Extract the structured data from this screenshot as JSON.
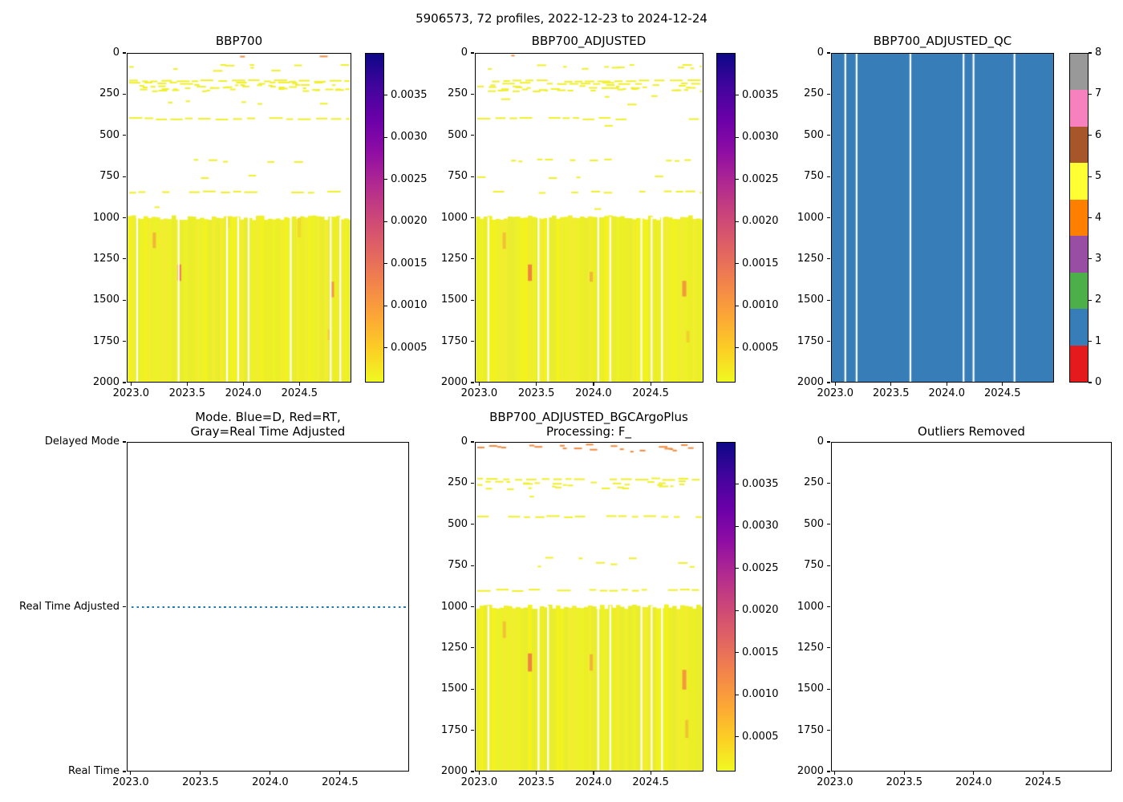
{
  "figure": {
    "suptitle": "5906573, 72 profiles, 2022-12-23 to 2024-12-24",
    "background": "#ffffff",
    "text_color": "#000000"
  },
  "axes": {
    "depth": {
      "range": [
        0,
        2000
      ],
      "values": [
        0,
        250,
        500,
        750,
        1000,
        1250,
        1500,
        1750,
        2000
      ],
      "labels": [
        "0",
        "250",
        "500",
        "750",
        "1000",
        "1250",
        "1500",
        "1750",
        "2000"
      ]
    },
    "year_heat": {
      "range": [
        2022.962,
        2024.962
      ],
      "values": [
        2023.0,
        2023.5,
        2024.0,
        2024.5
      ],
      "labels": [
        "2023.0",
        "2023.5",
        "2024.0",
        "2024.5"
      ]
    },
    "year_wide": {
      "range": [
        2022.972,
        2024.995
      ],
      "values": [
        2023.0,
        2023.5,
        2024.0,
        2024.5
      ],
      "labels": [
        "2023.0",
        "2023.5",
        "2024.0",
        "2024.5"
      ]
    },
    "mode_categories": {
      "labels": [
        "Delayed Mode",
        "Real Time Adjusted",
        "Real Time"
      ],
      "fracs": [
        0,
        0.5,
        1
      ]
    }
  },
  "colorbars": {
    "heat": {
      "vmin": 9e-05,
      "vmax": 0.004,
      "tick_values": [
        0.0035,
        0.003,
        0.0025,
        0.002,
        0.0015,
        0.001,
        0.0005
      ],
      "tick_labels": [
        "0.0035",
        "0.0030",
        "0.0025",
        "0.0020",
        "0.0015",
        "0.0010",
        "0.0005"
      ],
      "gradient_top_to_bottom": [
        "#0d0887",
        "#41049d",
        "#6a00a8",
        "#8f0da4",
        "#b12a90",
        "#cc4778",
        "#e16462",
        "#f2844b",
        "#fca636",
        "#fcce25",
        "#f0f921"
      ]
    },
    "qc": {
      "tick_labels": [
        "8",
        "7",
        "6",
        "5",
        "4",
        "3",
        "2",
        "1",
        "0"
      ],
      "cell_colors_top_to_bottom": [
        "#999999",
        "#f781bf",
        "#a65628",
        "#ffff33",
        "#ff7f00",
        "#984ea3",
        "#4daf4a",
        "#377eb8",
        "#e41a1c"
      ]
    }
  },
  "heat_palette": {
    "base_yellow": "#edf128",
    "stripe_shades": [
      "#edf128",
      "#e9ed2d",
      "#f2f21f",
      "#ecef25",
      "#f0ee2e"
    ],
    "dash_yellow": "#f0ef2b",
    "dash_orange": "#ef8b3f"
  },
  "chart_data": [
    {
      "id": "bbp700",
      "type": "heatmap",
      "title": "BBP700",
      "x_axis": "year_heat",
      "y_axis": "depth",
      "colorbar": "heat",
      "seed": 11,
      "bands": [
        {
          "kind": "dashes",
          "d0": 5,
          "d1": 25,
          "density": 0.12,
          "color": "#ef8b3f"
        },
        {
          "kind": "dashes",
          "d0": 60,
          "d1": 115,
          "density": 0.14,
          "color": "#f0ef2b"
        },
        {
          "kind": "line",
          "d0": 162,
          "d1": 170,
          "density": 0.93,
          "color": "#f0ef2b"
        },
        {
          "kind": "line",
          "d0": 176,
          "d1": 184,
          "density": 0.55,
          "color": "#f0ef2b"
        },
        {
          "kind": "dashes",
          "d0": 185,
          "d1": 235,
          "density": 0.6,
          "color": "#f0ef2b"
        },
        {
          "kind": "dashes",
          "d0": 250,
          "d1": 320,
          "density": 0.04,
          "color": "#f0ef2b"
        },
        {
          "kind": "line",
          "d0": 392,
          "d1": 400,
          "density": 0.8,
          "color": "#f0ef2b"
        },
        {
          "kind": "dashes",
          "d0": 430,
          "d1": 455,
          "density": 0.06,
          "color": "#f0ef2b"
        },
        {
          "kind": "dashes",
          "d0": 640,
          "d1": 665,
          "density": 0.35,
          "color": "#f0ef2b"
        },
        {
          "kind": "dashes",
          "d0": 735,
          "d1": 765,
          "density": 0.04,
          "color": "#f0ef2b"
        },
        {
          "kind": "line",
          "d0": 840,
          "d1": 848,
          "density": 0.7,
          "color": "#f0ef2b"
        },
        {
          "kind": "dashes",
          "d0": 930,
          "d1": 955,
          "density": 0.04,
          "color": "#f0ef2b"
        },
        {
          "kind": "solid",
          "d0": 1000,
          "d1": 2000,
          "color": "#edf128"
        }
      ],
      "gaps": [
        0.043,
        0.229,
        0.446,
        0.496,
        0.543,
        0.732,
        0.911,
        0.954
      ],
      "marks": [
        {
          "x": 0.12,
          "d0": 1090,
          "d1": 1185,
          "w": 4,
          "color": "#f2b43a"
        },
        {
          "x": 0.232,
          "d0": 1285,
          "d1": 1385,
          "w": 5,
          "color": "#ef8440"
        },
        {
          "x": 0.917,
          "d0": 1390,
          "d1": 1485,
          "w": 5,
          "color": "#f2993c"
        },
        {
          "x": 0.905,
          "d0": 1680,
          "d1": 1745,
          "w": 4,
          "color": "#f0d02f"
        },
        {
          "x": 0.45,
          "d0": 1000,
          "d1": 1060,
          "w": 5,
          "color": "#f0e22e"
        },
        {
          "x": 0.77,
          "d0": 1000,
          "d1": 1120,
          "w": 4,
          "color": "#efd92f"
        }
      ]
    },
    {
      "id": "bbp700_adjusted",
      "type": "heatmap",
      "title": "BBP700_ADJUSTED",
      "x_axis": "year_heat",
      "y_axis": "depth",
      "colorbar": "heat",
      "seed": 22,
      "bands": [
        {
          "kind": "dashes",
          "d0": 5,
          "d1": 25,
          "density": 0.12,
          "color": "#ef8b3f"
        },
        {
          "kind": "dashes",
          "d0": 60,
          "d1": 115,
          "density": 0.14,
          "color": "#f0ef2b"
        },
        {
          "kind": "line",
          "d0": 162,
          "d1": 170,
          "density": 0.93,
          "color": "#f0ef2b"
        },
        {
          "kind": "line",
          "d0": 176,
          "d1": 184,
          "density": 0.55,
          "color": "#f0ef2b"
        },
        {
          "kind": "dashes",
          "d0": 185,
          "d1": 235,
          "density": 0.6,
          "color": "#f0ef2b"
        },
        {
          "kind": "dashes",
          "d0": 250,
          "d1": 320,
          "density": 0.04,
          "color": "#f0ef2b"
        },
        {
          "kind": "line",
          "d0": 392,
          "d1": 400,
          "density": 0.8,
          "color": "#f0ef2b"
        },
        {
          "kind": "dashes",
          "d0": 430,
          "d1": 455,
          "density": 0.06,
          "color": "#f0ef2b"
        },
        {
          "kind": "dashes",
          "d0": 640,
          "d1": 665,
          "density": 0.35,
          "color": "#f0ef2b"
        },
        {
          "kind": "dashes",
          "d0": 735,
          "d1": 765,
          "density": 0.04,
          "color": "#f0ef2b"
        },
        {
          "kind": "line",
          "d0": 840,
          "d1": 848,
          "density": 0.7,
          "color": "#f0ef2b"
        },
        {
          "kind": "dashes",
          "d0": 930,
          "d1": 955,
          "density": 0.04,
          "color": "#f0ef2b"
        },
        {
          "kind": "solid",
          "d0": 1000,
          "d1": 2000,
          "color": "#edf128"
        }
      ],
      "gaps": [
        0.056,
        0.277,
        0.319,
        0.54,
        0.593,
        0.73,
        0.775,
        0.821
      ],
      "marks": [
        {
          "x": 0.126,
          "d0": 1090,
          "d1": 1190,
          "w": 4,
          "color": "#f2c136"
        },
        {
          "x": 0.239,
          "d0": 1285,
          "d1": 1385,
          "w": 5,
          "color": "#ef8440"
        },
        {
          "x": 0.509,
          "d0": 1330,
          "d1": 1390,
          "w": 4,
          "color": "#f2b43a"
        },
        {
          "x": 0.919,
          "d0": 1385,
          "d1": 1480,
          "w": 5,
          "color": "#f2993c"
        },
        {
          "x": 0.935,
          "d0": 1690,
          "d1": 1760,
          "w": 4,
          "color": "#f0d02f"
        }
      ]
    },
    {
      "id": "bbp700_adjusted_qc",
      "type": "qc_heatmap",
      "title": "BBP700_ADJUSTED_QC",
      "x_axis": "year_heat",
      "y_axis": "depth",
      "colorbar": "qc",
      "qc_value_everywhere": 1,
      "fill_color": "#377eb8",
      "gaps": [
        0.061,
        0.112,
        0.355,
        0.595,
        0.64,
        0.825
      ]
    },
    {
      "id": "mode",
      "type": "category_line",
      "title": "Mode. Blue=D, Red=RT,\nGray=Real Time Adjusted",
      "x_axis": "year_wide",
      "y_axis": "mode_categories",
      "line": {
        "category": "Real Time Adjusted",
        "category_frac": 0.5,
        "style": "dotted",
        "color": "#1f77b4",
        "x_start_frac": 0.014,
        "x_end_frac": 1.0
      }
    },
    {
      "id": "bgcargoplus",
      "type": "heatmap",
      "title": "BBP700_ADJUSTED_BGCArgoPlus\nProcessing: F_",
      "x_axis": "year_heat",
      "y_axis": "depth",
      "colorbar": "heat",
      "seed": 55,
      "bands": [
        {
          "kind": "dashes",
          "d0": 5,
          "d1": 60,
          "density": 0.28,
          "color": "#ef8b3f"
        },
        {
          "kind": "line",
          "d0": 218,
          "d1": 226,
          "density": 0.9,
          "color": "#f0ef2b"
        },
        {
          "kind": "dashes",
          "d0": 228,
          "d1": 290,
          "density": 0.5,
          "color": "#f0ef2b"
        },
        {
          "kind": "dashes",
          "d0": 300,
          "d1": 345,
          "density": 0.06,
          "color": "#f0ef2b"
        },
        {
          "kind": "line",
          "d0": 448,
          "d1": 456,
          "density": 0.72,
          "color": "#f0ef2b"
        },
        {
          "kind": "dashes",
          "d0": 540,
          "d1": 560,
          "density": 0.08,
          "color": "#f0ef2b"
        },
        {
          "kind": "dashes",
          "d0": 690,
          "d1": 765,
          "density": 0.07,
          "color": "#f0ef2b"
        },
        {
          "kind": "line",
          "d0": 896,
          "d1": 904,
          "density": 0.68,
          "color": "#f0ef2b"
        },
        {
          "kind": "solid",
          "d0": 1000,
          "d1": 2000,
          "color": "#edf128"
        }
      ],
      "gaps": [
        0.056,
        0.277,
        0.319,
        0.54,
        0.593,
        0.73,
        0.775,
        0.821
      ],
      "marks": [
        {
          "x": 0.126,
          "d0": 1090,
          "d1": 1190,
          "w": 4,
          "color": "#f2c136"
        },
        {
          "x": 0.239,
          "d0": 1285,
          "d1": 1395,
          "w": 5,
          "color": "#ef8440"
        },
        {
          "x": 0.509,
          "d0": 1290,
          "d1": 1390,
          "w": 4,
          "color": "#f2b43a"
        },
        {
          "x": 0.919,
          "d0": 1385,
          "d1": 1505,
          "w": 5,
          "color": "#f2993c"
        },
        {
          "x": 0.93,
          "d0": 1690,
          "d1": 1800,
          "w": 4,
          "color": "#f0c433"
        }
      ]
    },
    {
      "id": "outliers",
      "type": "empty",
      "title": "Outliers Removed",
      "x_axis": "year_wide",
      "y_axis": "depth"
    }
  ]
}
